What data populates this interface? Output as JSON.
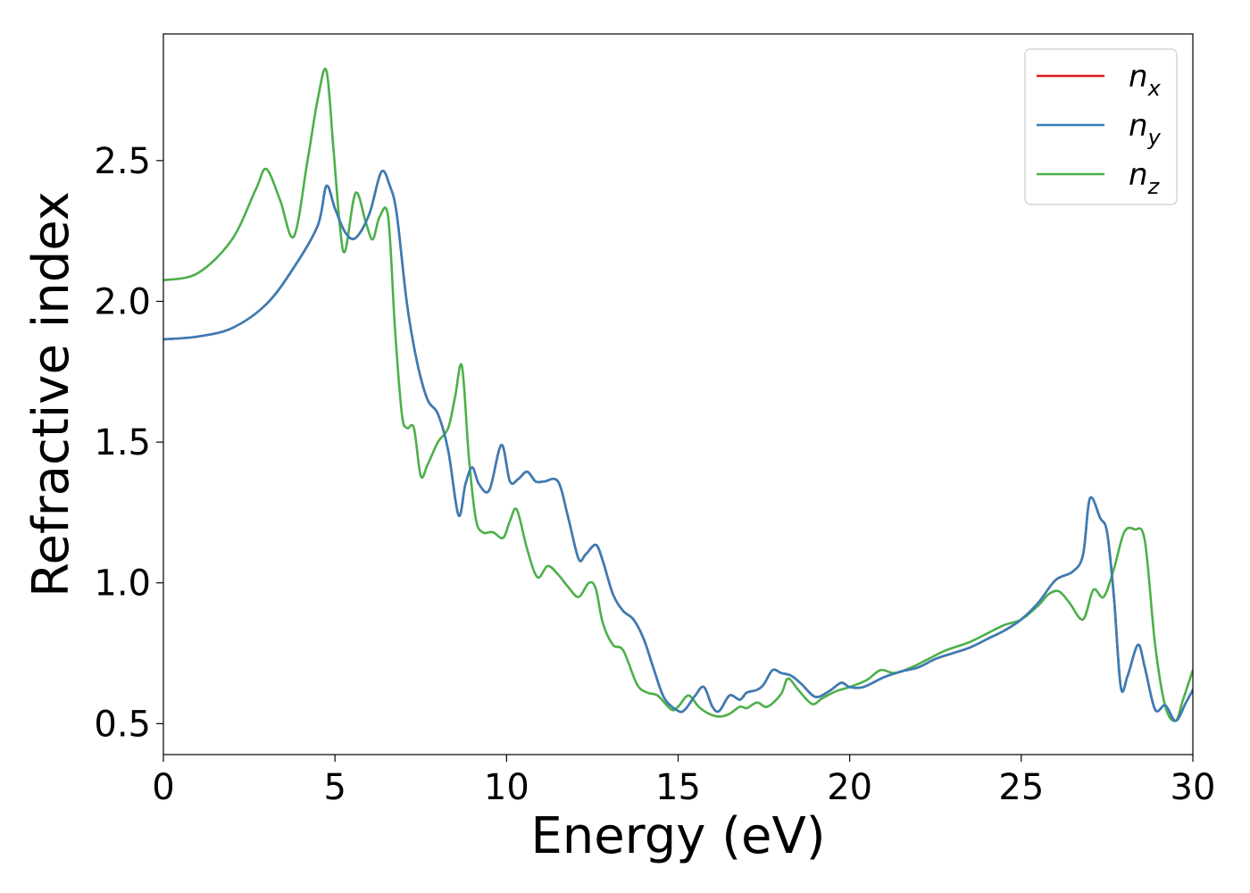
{
  "chart_data": {
    "type": "line",
    "title": "",
    "xlabel": "Energy (eV)",
    "ylabel": "Refractive index",
    "xlim": [
      0,
      30
    ],
    "ylim": [
      0.39,
      2.95
    ],
    "xticks": [
      0,
      5,
      10,
      15,
      20,
      25,
      30
    ],
    "xtick_labels": [
      "0",
      "5",
      "10",
      "15",
      "20",
      "25",
      "30"
    ],
    "yticks": [
      0.5,
      1.0,
      1.5,
      2.0,
      2.5
    ],
    "ytick_labels": [
      "0.5",
      "1.0",
      "1.5",
      "2.0",
      "2.5"
    ],
    "grid": false,
    "legend_position": "top-right",
    "series": [
      {
        "name": "n_x",
        "base": "n",
        "sub": "x",
        "color": "#e41a1c",
        "x": [
          0,
          1,
          2,
          3,
          3.8,
          4.5,
          4.75,
          5.0,
          5.3,
          5.6,
          6.0,
          6.35,
          6.6,
          6.8,
          7.1,
          7.4,
          7.7,
          8.0,
          8.3,
          8.6,
          8.8,
          9.0,
          9.2,
          9.5,
          9.85,
          10.1,
          10.35,
          10.6,
          10.85,
          11.1,
          11.5,
          11.8,
          12.1,
          12.3,
          12.6,
          12.8,
          13.1,
          13.4,
          13.7,
          14.0,
          14.3,
          14.6,
          15.0,
          15.2,
          15.5,
          15.75,
          16.0,
          16.2,
          16.5,
          16.8,
          17.0,
          17.3,
          17.5,
          17.75,
          18.0,
          18.3,
          18.6,
          19.0,
          19.4,
          19.75,
          20.0,
          20.4,
          21.0,
          21.5,
          22.0,
          22.5,
          23.0,
          23.5,
          24.0,
          24.5,
          25.0,
          25.5,
          26.0,
          26.5,
          26.8,
          27.0,
          27.3,
          27.5,
          27.7,
          27.9,
          28.1,
          28.4,
          28.6,
          28.9,
          29.2,
          29.5,
          29.8,
          30.0
        ],
        "y": [
          1.865,
          1.875,
          1.905,
          1.99,
          2.12,
          2.27,
          2.41,
          2.33,
          2.245,
          2.225,
          2.31,
          2.46,
          2.41,
          2.31,
          1.99,
          1.78,
          1.65,
          1.6,
          1.47,
          1.24,
          1.35,
          1.41,
          1.35,
          1.33,
          1.49,
          1.36,
          1.37,
          1.395,
          1.36,
          1.36,
          1.36,
          1.23,
          1.085,
          1.1,
          1.135,
          1.08,
          0.96,
          0.9,
          0.87,
          0.8,
          0.69,
          0.59,
          0.545,
          0.55,
          0.6,
          0.63,
          0.56,
          0.545,
          0.6,
          0.585,
          0.61,
          0.62,
          0.64,
          0.69,
          0.68,
          0.67,
          0.64,
          0.595,
          0.615,
          0.645,
          0.63,
          0.63,
          0.665,
          0.685,
          0.7,
          0.73,
          0.75,
          0.77,
          0.8,
          0.83,
          0.87,
          0.93,
          1.01,
          1.04,
          1.1,
          1.3,
          1.23,
          1.18,
          0.95,
          0.63,
          0.67,
          0.78,
          0.7,
          0.55,
          0.565,
          0.51,
          0.575,
          0.62
        ]
      },
      {
        "name": "n_y",
        "base": "n",
        "sub": "y",
        "color": "#377eb8",
        "x": [
          0,
          1,
          2,
          3,
          3.8,
          4.5,
          4.75,
          5.0,
          5.3,
          5.6,
          6.0,
          6.35,
          6.6,
          6.8,
          7.1,
          7.4,
          7.7,
          8.0,
          8.3,
          8.6,
          8.8,
          9.0,
          9.2,
          9.5,
          9.85,
          10.1,
          10.35,
          10.6,
          10.85,
          11.1,
          11.5,
          11.8,
          12.1,
          12.3,
          12.6,
          12.8,
          13.1,
          13.4,
          13.7,
          14.0,
          14.3,
          14.6,
          15.0,
          15.2,
          15.5,
          15.75,
          16.0,
          16.2,
          16.5,
          16.8,
          17.0,
          17.3,
          17.5,
          17.75,
          18.0,
          18.3,
          18.6,
          19.0,
          19.4,
          19.75,
          20.0,
          20.4,
          21.0,
          21.5,
          22.0,
          22.5,
          23.0,
          23.5,
          24.0,
          24.5,
          25.0,
          25.5,
          26.0,
          26.5,
          26.8,
          27.0,
          27.3,
          27.5,
          27.7,
          27.9,
          28.1,
          28.4,
          28.6,
          28.9,
          29.2,
          29.5,
          29.8,
          30.0
        ],
        "y": [
          1.865,
          1.875,
          1.905,
          1.99,
          2.12,
          2.27,
          2.41,
          2.33,
          2.245,
          2.225,
          2.31,
          2.46,
          2.41,
          2.31,
          1.99,
          1.78,
          1.65,
          1.6,
          1.47,
          1.24,
          1.35,
          1.41,
          1.35,
          1.33,
          1.49,
          1.36,
          1.37,
          1.395,
          1.36,
          1.36,
          1.36,
          1.23,
          1.085,
          1.1,
          1.135,
          1.08,
          0.96,
          0.9,
          0.87,
          0.8,
          0.69,
          0.59,
          0.545,
          0.55,
          0.6,
          0.63,
          0.56,
          0.545,
          0.6,
          0.585,
          0.61,
          0.62,
          0.64,
          0.69,
          0.68,
          0.67,
          0.64,
          0.595,
          0.615,
          0.645,
          0.63,
          0.63,
          0.665,
          0.685,
          0.7,
          0.73,
          0.75,
          0.77,
          0.8,
          0.83,
          0.87,
          0.93,
          1.01,
          1.04,
          1.1,
          1.3,
          1.23,
          1.18,
          0.95,
          0.63,
          0.67,
          0.78,
          0.7,
          0.55,
          0.565,
          0.51,
          0.575,
          0.62
        ]
      },
      {
        "name": "n_z",
        "base": "n",
        "sub": "z",
        "color": "#4daf4a",
        "x": [
          0,
          1,
          2,
          2.7,
          3.0,
          3.4,
          3.8,
          4.2,
          4.5,
          4.75,
          4.95,
          5.15,
          5.3,
          5.6,
          5.9,
          6.1,
          6.3,
          6.55,
          6.75,
          6.95,
          7.1,
          7.3,
          7.5,
          7.7,
          8.0,
          8.3,
          8.5,
          8.7,
          8.9,
          9.1,
          9.3,
          9.6,
          9.9,
          10.1,
          10.3,
          10.6,
          10.9,
          11.2,
          11.5,
          11.8,
          12.1,
          12.4,
          12.6,
          12.8,
          13.1,
          13.4,
          13.8,
          14.1,
          14.4,
          14.8,
          15.0,
          15.3,
          15.6,
          15.9,
          16.2,
          16.5,
          16.8,
          17.0,
          17.3,
          17.6,
          18.0,
          18.2,
          18.5,
          18.9,
          19.2,
          19.6,
          20.0,
          20.5,
          20.9,
          21.3,
          21.8,
          22.3,
          22.8,
          23.5,
          24.0,
          24.5,
          25.0,
          25.5,
          25.8,
          26.1,
          26.4,
          26.8,
          27.1,
          27.4,
          27.7,
          28.0,
          28.3,
          28.6,
          28.9,
          29.2,
          29.5,
          29.7,
          30.0
        ],
        "y": [
          2.075,
          2.1,
          2.22,
          2.4,
          2.47,
          2.36,
          2.23,
          2.5,
          2.72,
          2.82,
          2.55,
          2.26,
          2.18,
          2.385,
          2.28,
          2.22,
          2.3,
          2.3,
          1.9,
          1.6,
          1.55,
          1.55,
          1.38,
          1.42,
          1.5,
          1.55,
          1.66,
          1.77,
          1.45,
          1.23,
          1.18,
          1.18,
          1.16,
          1.22,
          1.26,
          1.12,
          1.02,
          1.06,
          1.03,
          0.985,
          0.95,
          1.0,
          0.98,
          0.86,
          0.78,
          0.76,
          0.64,
          0.61,
          0.6,
          0.55,
          0.56,
          0.6,
          0.56,
          0.535,
          0.525,
          0.535,
          0.56,
          0.555,
          0.575,
          0.56,
          0.605,
          0.66,
          0.62,
          0.57,
          0.59,
          0.615,
          0.63,
          0.655,
          0.69,
          0.68,
          0.7,
          0.73,
          0.76,
          0.79,
          0.82,
          0.85,
          0.87,
          0.92,
          0.96,
          0.97,
          0.93,
          0.87,
          0.975,
          0.95,
          1.05,
          1.18,
          1.19,
          1.15,
          0.78,
          0.56,
          0.51,
          0.58,
          0.69
        ]
      }
    ]
  }
}
